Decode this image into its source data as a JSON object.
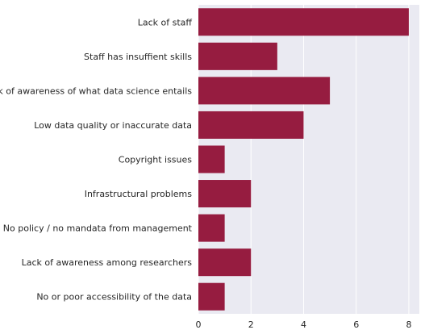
{
  "chart_data": {
    "type": "bar",
    "orientation": "horizontal",
    "categories": [
      "Lack of staff",
      "Staff has insuffient skills",
      "Lack of awareness of what data science entails",
      "Low data quality or inaccurate data",
      "Copyright issues",
      "Infrastructural problems",
      "No policy / no mandata from management",
      "Lack of awareness among researchers",
      "No or poor accessibility of the data"
    ],
    "values": [
      8,
      3,
      5,
      4,
      1,
      2,
      1,
      2,
      1
    ],
    "xticks": [
      "0",
      "2",
      "4",
      "6",
      "8"
    ],
    "xlim": [
      0,
      8.4
    ],
    "grid": true,
    "title": "",
    "xlabel": "",
    "ylabel": ""
  },
  "colors": {
    "bar": "#961c40",
    "background": "#eaeaf2",
    "grid": "#ffffff"
  }
}
